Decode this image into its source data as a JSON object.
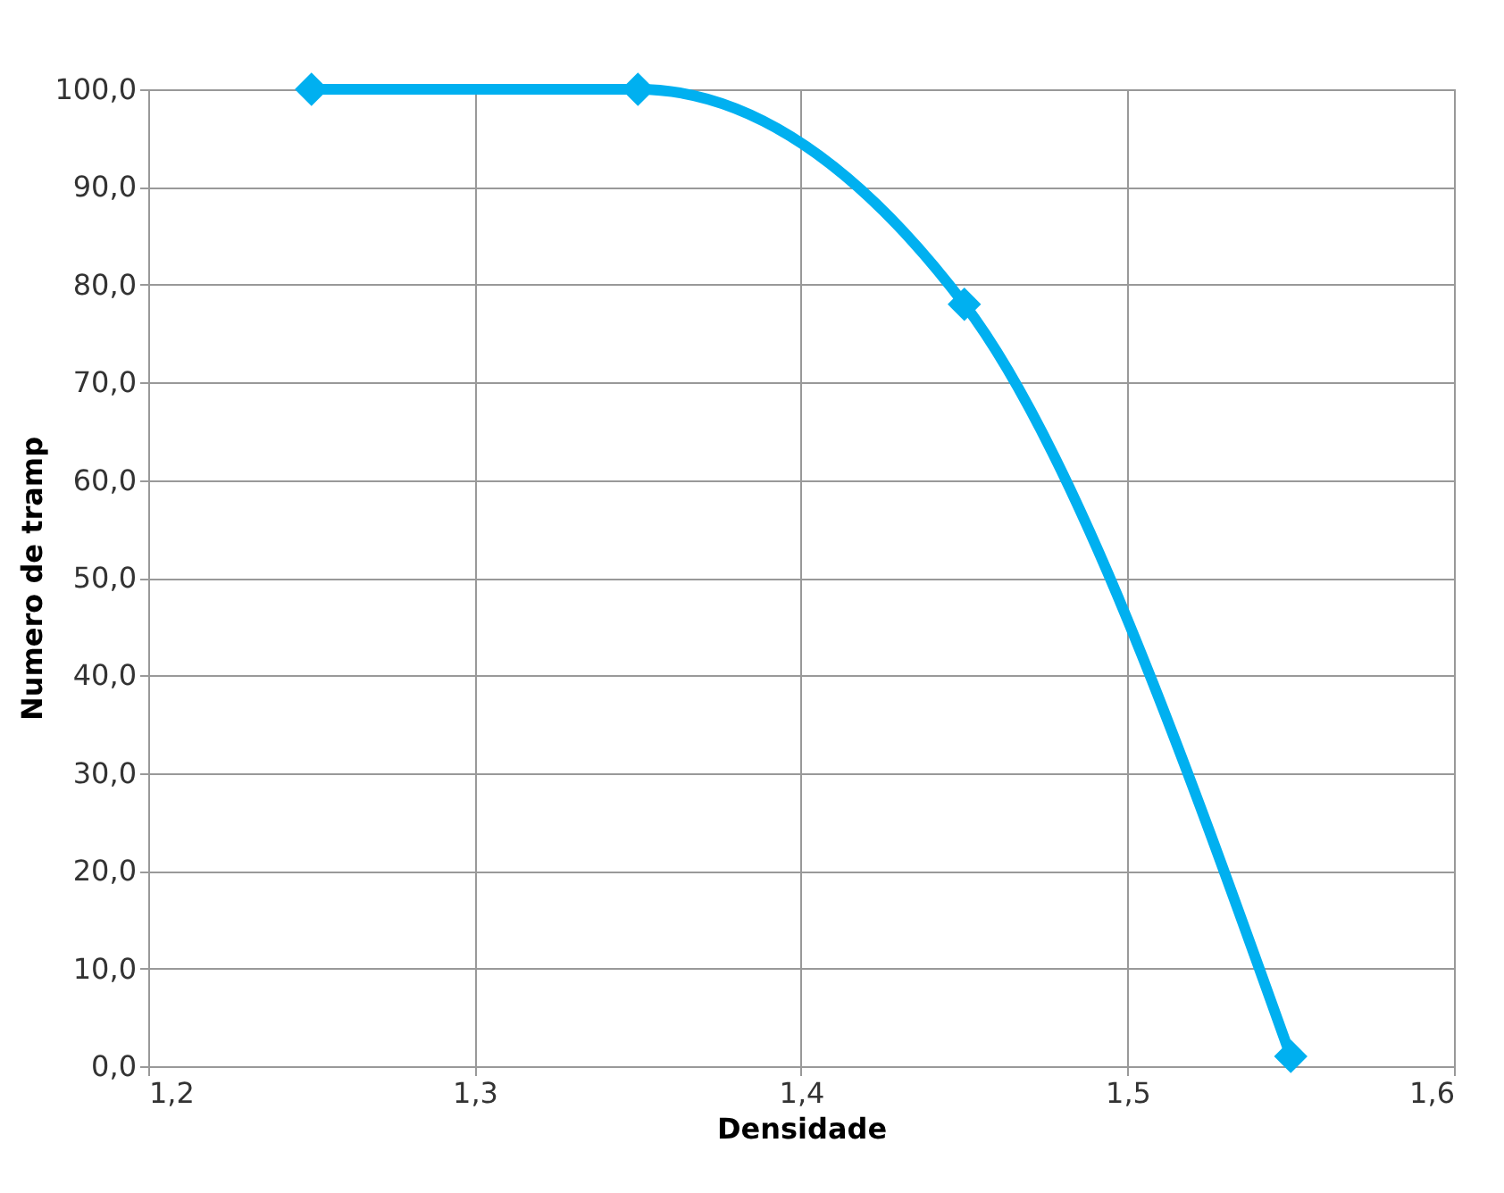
{
  "chart_data": {
    "type": "line",
    "xlabel": "Densidade",
    "ylabel": "Numero de tramp",
    "x": [
      1.25,
      1.35,
      1.45,
      1.55
    ],
    "series": [
      {
        "color": "#00b0f0",
        "values": [
          100,
          100,
          78,
          1
        ]
      }
    ],
    "xlim": [
      1.2,
      1.6
    ],
    "xticks": [
      {
        "value": 1.2,
        "label": "1,2"
      },
      {
        "value": 1.3,
        "label": "1,3"
      },
      {
        "value": 1.4,
        "label": "1,4"
      },
      {
        "value": 1.5,
        "label": "1,5"
      },
      {
        "value": 1.6,
        "label": "1,6"
      }
    ],
    "ylim": [
      0,
      100
    ],
    "yticks": [
      {
        "value": 0,
        "label": "0,0"
      },
      {
        "value": 10,
        "label": "10,0"
      },
      {
        "value": 20,
        "label": "20,0"
      },
      {
        "value": 30,
        "label": "30,0"
      },
      {
        "value": 40,
        "label": "40,0"
      },
      {
        "value": 50,
        "label": "50,0"
      },
      {
        "value": 60,
        "label": "60,0"
      },
      {
        "value": 70,
        "label": "70,0"
      },
      {
        "value": 80,
        "label": "80,0"
      },
      {
        "value": 90,
        "label": "90,0"
      },
      {
        "value": 100,
        "label": "100,0"
      }
    ],
    "grid": true,
    "marker": "diamond",
    "line_style": "solid"
  }
}
